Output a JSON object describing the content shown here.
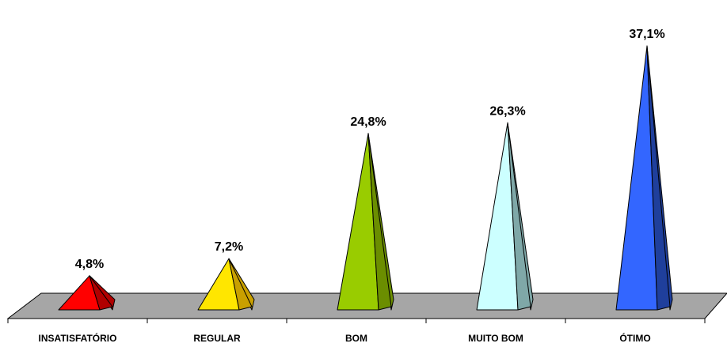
{
  "chart_data": {
    "type": "bar",
    "shape": "pyramid-3d",
    "categories": [
      "INSATISFATÓRIO",
      "REGULAR",
      "BOM",
      "MUITO BOM",
      "ÓTIMO"
    ],
    "values": [
      4.8,
      7.2,
      24.8,
      26.3,
      37.1
    ],
    "data_labels": [
      "4,8%",
      "7,2%",
      "24,8%",
      "26,3%",
      "37,1%"
    ],
    "ylim": [
      0,
      40
    ],
    "grid": false,
    "legend": "none",
    "colors": {
      "floor": "#a6a6a6",
      "series": [
        {
          "front": "#ff0000",
          "side": "#b00000"
        },
        {
          "front": "#ffe600",
          "side": "#c9a000"
        },
        {
          "front": "#99cc00",
          "side": "#6b8e00"
        },
        {
          "front": "#ccffff",
          "side": "#7fa8a8"
        },
        {
          "front": "#3366ff",
          "side": "#1f3f9c"
        }
      ]
    }
  }
}
